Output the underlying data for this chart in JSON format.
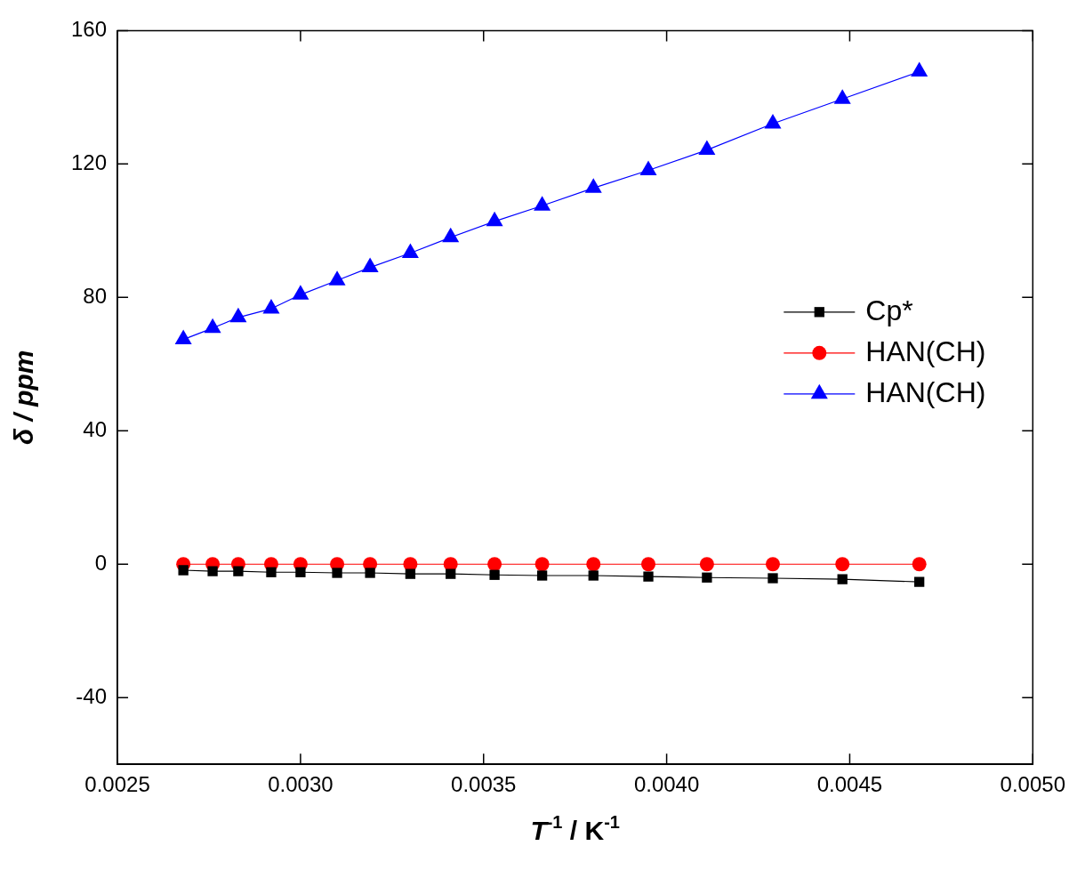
{
  "chart_data": {
    "type": "line",
    "xlabel": "T$^{-1}$ / K$^{-1}$",
    "ylabel": "δ / ppm",
    "x": [
      0.00268,
      0.00276,
      0.00283,
      0.00292,
      0.003,
      0.0031,
      0.00319,
      0.0033,
      0.00341,
      0.00353,
      0.00366,
      0.0038,
      0.00395,
      0.00411,
      0.00429,
      0.00448,
      0.00469
    ],
    "xlim": [
      0.0025,
      0.005
    ],
    "xticks": [
      {
        "value": 0.0025,
        "label": "0.0025"
      },
      {
        "value": 0.003,
        "label": "0.0030"
      },
      {
        "value": 0.0035,
        "label": "0.0035"
      },
      {
        "value": 0.004,
        "label": "0.0040"
      },
      {
        "value": 0.0045,
        "label": "0.0045"
      },
      {
        "value": 0.005,
        "label": "0.0050"
      }
    ],
    "ylim": [
      -60,
      160
    ],
    "yticks": [
      -40,
      0,
      40,
      80,
      120,
      160
    ],
    "grid": false,
    "legend": "right",
    "line_style": "solid",
    "series": [
      {
        "name": "Cp*",
        "color": "#000000",
        "marker": "square",
        "values": [
          -1.8,
          -2.1,
          -2.1,
          -2.4,
          -2.4,
          -2.6,
          -2.6,
          -2.9,
          -2.9,
          -3.2,
          -3.4,
          -3.4,
          -3.7,
          -4.0,
          -4.2,
          -4.5,
          -5.3
        ]
      },
      {
        "name": "HAN(CH)",
        "color": "#ff0000",
        "marker": "circle",
        "values": [
          0,
          0,
          0,
          0,
          0,
          0,
          0,
          0,
          0,
          0,
          0,
          0,
          0,
          0,
          0,
          0,
          0
        ]
      },
      {
        "name": "HAN(CH)",
        "color": "#0000ff",
        "marker": "triangle",
        "values": [
          67.4,
          70.8,
          74.0,
          76.6,
          80.8,
          85.1,
          89.0,
          93.3,
          98.0,
          102.8,
          107.5,
          112.8,
          118.1,
          124.2,
          132.1,
          139.5,
          147.7
        ]
      }
    ]
  }
}
